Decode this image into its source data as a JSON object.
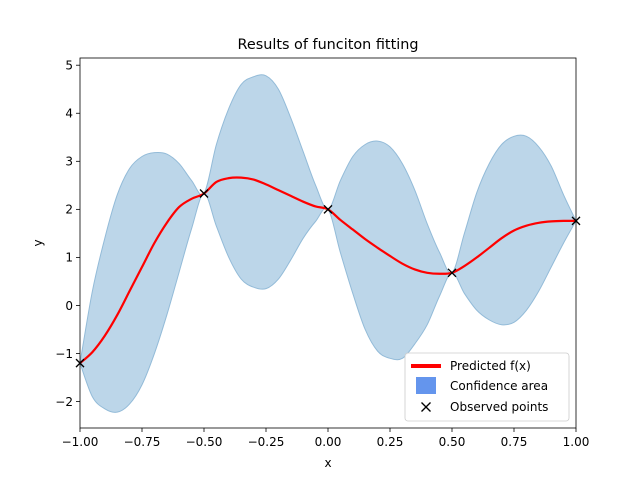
{
  "chart_data": {
    "type": "line",
    "title": "Results of funciton fitting",
    "xlabel": "x",
    "ylabel": "y",
    "xlim": [
      -1,
      1
    ],
    "ylim": [
      -2.55,
      5.15
    ],
    "xticks": [
      -1.0,
      -0.75,
      -0.5,
      -0.25,
      0.0,
      0.25,
      0.5,
      0.75,
      1.0
    ],
    "xtick_labels": [
      "−1.00",
      "−0.75",
      "−0.50",
      "−0.25",
      "0.00",
      "0.25",
      "0.50",
      "0.75",
      "1.00"
    ],
    "yticks": [
      -2,
      -1,
      0,
      1,
      2,
      3,
      4,
      5
    ],
    "ytick_labels": [
      "−2",
      "−1",
      "0",
      "1",
      "2",
      "3",
      "4",
      "5"
    ],
    "grid": false,
    "legend_position": "bottom-right",
    "series": [
      {
        "name": "Predicted f(x)",
        "kind": "line",
        "color": "#ff0000",
        "x": [
          -1.0,
          -0.95,
          -0.9,
          -0.85,
          -0.8,
          -0.75,
          -0.7,
          -0.65,
          -0.6,
          -0.55,
          -0.5,
          -0.45,
          -0.4,
          -0.35,
          -0.3,
          -0.25,
          -0.2,
          -0.15,
          -0.1,
          -0.05,
          0.0,
          0.05,
          0.1,
          0.15,
          0.2,
          0.25,
          0.3,
          0.35,
          0.4,
          0.45,
          0.5,
          0.55,
          0.6,
          0.65,
          0.7,
          0.75,
          0.8,
          0.85,
          0.9,
          0.95,
          1.0
        ],
        "y": [
          -1.2,
          -0.97,
          -0.63,
          -0.2,
          0.3,
          0.8,
          1.3,
          1.72,
          2.05,
          2.22,
          2.33,
          2.57,
          2.65,
          2.66,
          2.62,
          2.52,
          2.4,
          2.28,
          2.16,
          2.06,
          2.0,
          1.78,
          1.58,
          1.38,
          1.2,
          1.03,
          0.87,
          0.75,
          0.68,
          0.66,
          0.68,
          0.82,
          1.0,
          1.2,
          1.4,
          1.56,
          1.66,
          1.72,
          1.75,
          1.76,
          1.76
        ]
      },
      {
        "name": "Confidence area",
        "kind": "band",
        "color": "#6495ed",
        "fill": "#bcd6e9",
        "edge": "#93bbd8",
        "x": [
          -1.0,
          -0.95,
          -0.9,
          -0.85,
          -0.8,
          -0.75,
          -0.7,
          -0.65,
          -0.6,
          -0.55,
          -0.5,
          -0.45,
          -0.4,
          -0.35,
          -0.3,
          -0.25,
          -0.2,
          -0.15,
          -0.1,
          -0.05,
          0.0,
          0.05,
          0.1,
          0.15,
          0.2,
          0.25,
          0.3,
          0.35,
          0.4,
          0.45,
          0.5,
          0.55,
          0.6,
          0.65,
          0.7,
          0.75,
          0.8,
          0.85,
          0.9,
          0.95,
          1.0
        ],
        "upper": [
          -1.2,
          0.3,
          1.4,
          2.3,
          2.85,
          3.1,
          3.18,
          3.15,
          2.95,
          2.6,
          2.33,
          3.35,
          4.1,
          4.6,
          4.76,
          4.78,
          4.5,
          3.9,
          3.2,
          2.5,
          2.0,
          2.6,
          3.1,
          3.35,
          3.42,
          3.3,
          2.95,
          2.4,
          1.7,
          1.1,
          0.68,
          1.5,
          2.35,
          2.95,
          3.35,
          3.52,
          3.52,
          3.3,
          2.9,
          2.3,
          1.76
        ],
        "lower": [
          -1.2,
          -1.9,
          -2.15,
          -2.22,
          -2.05,
          -1.65,
          -1.0,
          -0.2,
          0.7,
          1.6,
          2.33,
          1.65,
          1.0,
          0.55,
          0.38,
          0.35,
          0.55,
          0.95,
          1.4,
          1.75,
          2.0,
          1.1,
          0.25,
          -0.5,
          -0.95,
          -1.1,
          -1.1,
          -0.8,
          -0.4,
          0.2,
          0.68,
          0.25,
          -0.1,
          -0.3,
          -0.4,
          -0.35,
          -0.1,
          0.3,
          0.8,
          1.3,
          1.76
        ]
      },
      {
        "name": "Observed points",
        "kind": "scatter",
        "marker": "x",
        "color": "#000000",
        "x": [
          -1.0,
          -0.5,
          0.0,
          0.5,
          1.0
        ],
        "y": [
          -1.2,
          2.33,
          2.0,
          0.68,
          1.76
        ]
      }
    ]
  }
}
